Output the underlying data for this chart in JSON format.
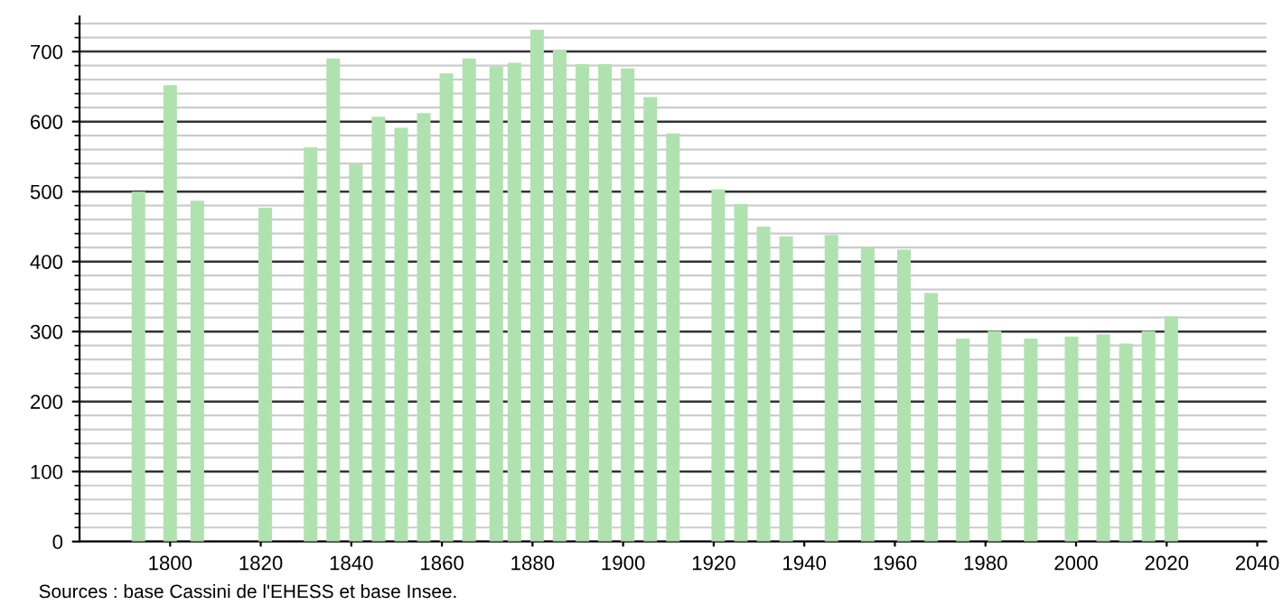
{
  "chart_data": {
    "type": "bar",
    "x": [
      1793,
      1800,
      1806,
      1821,
      1831,
      1836,
      1841,
      1846,
      1851,
      1856,
      1861,
      1866,
      1872,
      1876,
      1881,
      1886,
      1891,
      1896,
      1901,
      1906,
      1911,
      1921,
      1926,
      1931,
      1936,
      1946,
      1954,
      1962,
      1968,
      1975,
      1982,
      1990,
      1999,
      2006,
      2011,
      2016,
      2021
    ],
    "values": [
      500,
      652,
      487,
      477,
      563,
      690,
      539,
      607,
      591,
      612,
      669,
      690,
      679,
      684,
      731,
      702,
      682,
      682,
      676,
      635,
      583,
      503,
      482,
      450,
      436,
      438,
      420,
      417,
      355,
      290,
      301,
      290,
      293,
      296,
      283,
      301,
      322
    ],
    "color": "#b0e2b0",
    "xlim": [
      1780,
      2042
    ],
    "xticks": [
      1800,
      1820,
      1840,
      1860,
      1880,
      1900,
      1920,
      1940,
      1960,
      1980,
      2000,
      2020,
      2040
    ],
    "ylim": [
      0,
      750
    ],
    "yticks": [
      0,
      100,
      200,
      300,
      400,
      500,
      600,
      700
    ],
    "grid": "y",
    "legend": false,
    "annotations": [
      "Sources : base Cassini de l'EHESS et base Insee."
    ]
  }
}
